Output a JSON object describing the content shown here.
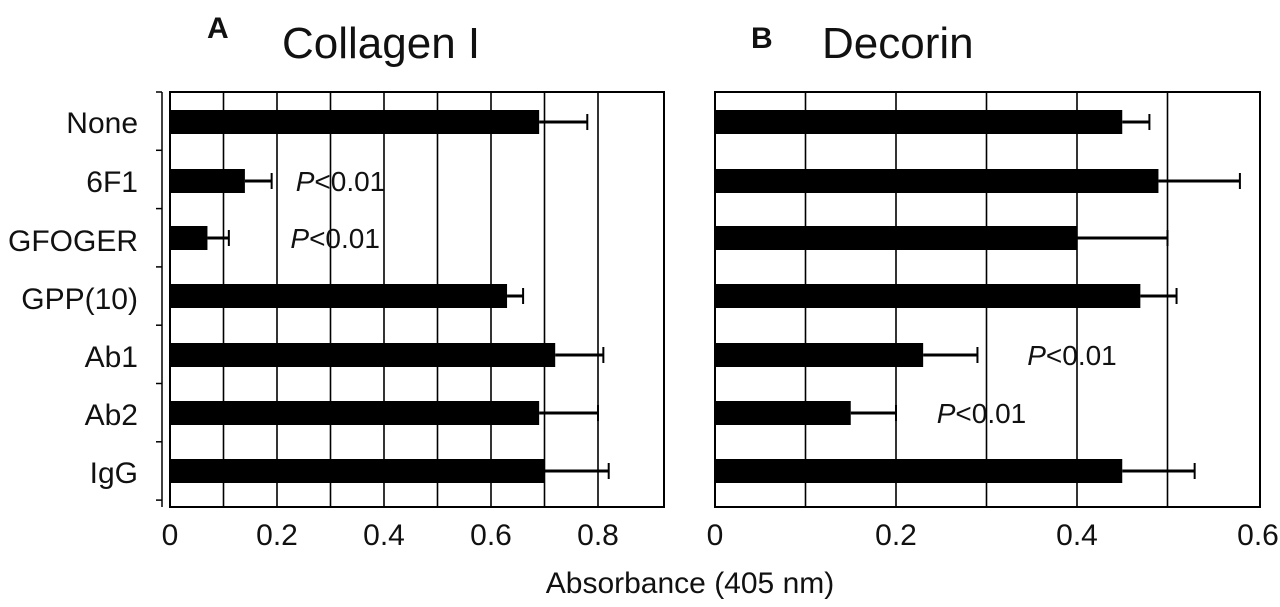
{
  "colors": {
    "bar": "#000000",
    "grid": "#000000",
    "letter": "#1a6fa8",
    "text": "#111111"
  },
  "shared": {
    "xlabel": "Absorbance (405 nm)",
    "categories": [
      "None",
      "6F1",
      "GFOGER",
      "GPP(10)",
      "Ab1",
      "Ab2",
      "IgG"
    ]
  },
  "chart_data": [
    {
      "type": "bar",
      "orientation": "horizontal",
      "panel_letter": "A",
      "title": "Collagen I",
      "xlabel": "Absorbance (405 nm)",
      "categories": [
        "None",
        "6F1",
        "GFOGER",
        "GPP(10)",
        "Ab1",
        "Ab2",
        "IgG"
      ],
      "values": [
        0.69,
        0.14,
        0.07,
        0.63,
        0.72,
        0.69,
        0.7
      ],
      "errors": [
        0.09,
        0.05,
        0.04,
        0.03,
        0.09,
        0.11,
        0.12
      ],
      "xlim": [
        0,
        0.9
      ],
      "xticks": [
        0,
        0.2,
        0.4,
        0.6,
        0.8
      ],
      "xtick_labels": [
        "0",
        "0.2",
        "0.4",
        "0.6",
        "0.8"
      ],
      "grid": true,
      "annotations": [
        {
          "category": "6F1",
          "text_italic": "P",
          "text_rest": "<0.01",
          "at_value": 0.235
        },
        {
          "category": "GFOGER",
          "text_italic": "P",
          "text_rest": "<0.01",
          "at_value": 0.225
        }
      ]
    },
    {
      "type": "bar",
      "orientation": "horizontal",
      "panel_letter": "B",
      "title": "Decorin",
      "xlabel": "Absorbance (405 nm)",
      "categories": [
        "None",
        "6F1",
        "GFOGER",
        "GPP(10)",
        "Ab1",
        "Ab2",
        "IgG"
      ],
      "values": [
        0.45,
        0.49,
        0.4,
        0.47,
        0.23,
        0.15,
        0.45
      ],
      "errors": [
        0.03,
        0.09,
        0.1,
        0.04,
        0.06,
        0.05,
        0.08
      ],
      "xlim": [
        0,
        0.6
      ],
      "xticks": [
        0,
        0.2,
        0.4,
        0.6
      ],
      "xtick_labels": [
        "0",
        "0.2",
        "0.4",
        "0.6"
      ],
      "grid": true,
      "annotations": [
        {
          "category": "Ab1",
          "text_italic": "P",
          "text_rest": "<0.01",
          "at_value": 0.345
        },
        {
          "category": "Ab2",
          "text_italic": "P",
          "text_rest": "<0.01",
          "at_value": 0.245
        }
      ]
    }
  ]
}
